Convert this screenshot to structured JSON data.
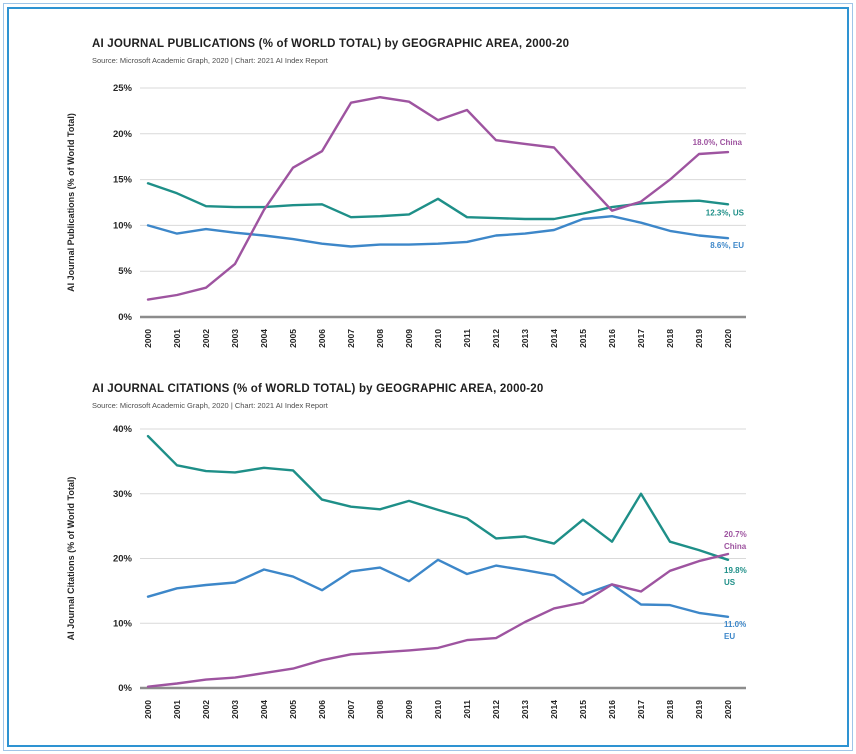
{
  "page": {
    "border_outer_color": "#9fc5e8",
    "border_inner_color": "#2e93d2",
    "background": "#ffffff"
  },
  "charts": [
    {
      "title": "AI JOURNAL PUBLICATIONS (% of WORLD TOTAL) by GEOGRAPHIC AREA, 2000-20",
      "source": "Source: Microsoft Academic Graph, 2020 | Chart: 2021 AI Index Report",
      "chart_data": {
        "type": "line",
        "ylabel": "AI Journal Publications (% of World Total)",
        "ylim": [
          0,
          25
        ],
        "yticks": [
          0,
          5,
          10,
          15,
          20,
          25
        ],
        "ytick_labels": [
          "0%",
          "5%",
          "10%",
          "15%",
          "20%",
          "25%"
        ],
        "grid": true,
        "categories": [
          "2000",
          "2001",
          "2002",
          "2003",
          "2004",
          "2005",
          "2006",
          "2007",
          "2008",
          "2009",
          "2010",
          "2011",
          "2012",
          "2013",
          "2014",
          "2015",
          "2016",
          "2017",
          "2018",
          "2019",
          "2020"
        ],
        "series": [
          {
            "name": "US",
            "color": "#1e8f88",
            "values": [
              14.6,
              13.5,
              12.1,
              12.0,
              12.0,
              12.2,
              12.3,
              10.9,
              11.0,
              11.2,
              12.9,
              10.9,
              10.8,
              10.7,
              10.7,
              11.3,
              12.0,
              12.4,
              12.6,
              12.7,
              12.3
            ],
            "end_label_lines": [
              "12.3%, US"
            ]
          },
          {
            "name": "EU",
            "color": "#3d87c9",
            "values": [
              10.0,
              9.1,
              9.6,
              9.2,
              8.9,
              8.5,
              8.0,
              7.7,
              7.9,
              7.9,
              8.0,
              8.2,
              8.9,
              9.1,
              9.5,
              10.7,
              11.0,
              10.3,
              9.4,
              8.9,
              8.6
            ],
            "end_label_lines": [
              "8.6%, EU"
            ]
          },
          {
            "name": "China",
            "color": "#9e54a0",
            "values": [
              1.9,
              2.4,
              3.2,
              5.8,
              11.7,
              16.3,
              18.1,
              23.4,
              24.0,
              23.5,
              21.5,
              22.6,
              19.3,
              18.9,
              18.5,
              15.0,
              11.6,
              12.6,
              15.0,
              17.8,
              18.0
            ],
            "end_label_lines": [
              "18.0%, China"
            ]
          }
        ]
      }
    },
    {
      "title": "AI JOURNAL CITATIONS (% of WORLD TOTAL) by GEOGRAPHIC AREA, 2000-20",
      "source": "Source: Microsoft Academic Graph, 2020 | Chart: 2021 AI Index Report",
      "chart_data": {
        "type": "line",
        "ylabel": "AI Journal Citations (% of World Total)",
        "ylim": [
          0,
          40
        ],
        "yticks": [
          0,
          10,
          20,
          30,
          40
        ],
        "ytick_labels": [
          "0%",
          "10%",
          "20%",
          "30%",
          "40%"
        ],
        "grid": true,
        "categories": [
          "2000",
          "2001",
          "2002",
          "2003",
          "2004",
          "2005",
          "2006",
          "2007",
          "2008",
          "2009",
          "2010",
          "2011",
          "2012",
          "2013",
          "2014",
          "2015",
          "2016",
          "2017",
          "2018",
          "2019",
          "2020"
        ],
        "series": [
          {
            "name": "US",
            "color": "#1e8f88",
            "values": [
              38.9,
              34.4,
              33.5,
              33.3,
              34.0,
              33.6,
              29.1,
              28.0,
              27.6,
              28.9,
              27.5,
              26.2,
              23.1,
              23.4,
              22.3,
              26.0,
              22.6,
              30.0,
              22.6,
              21.3,
              19.8
            ],
            "end_label_lines": [
              "19.8%",
              "US"
            ]
          },
          {
            "name": "EU",
            "color": "#3d87c9",
            "values": [
              14.1,
              15.4,
              15.9,
              16.3,
              18.3,
              17.2,
              15.1,
              18.0,
              18.6,
              16.5,
              19.8,
              17.6,
              18.9,
              18.2,
              17.4,
              14.4,
              16.0,
              12.9,
              12.8,
              11.6,
              11.0
            ],
            "end_label_lines": [
              "11.0%",
              "EU"
            ]
          },
          {
            "name": "China",
            "color": "#9e54a0",
            "values": [
              0.2,
              0.7,
              1.3,
              1.6,
              2.3,
              3.0,
              4.3,
              5.2,
              5.5,
              5.8,
              6.2,
              7.4,
              7.7,
              10.2,
              12.3,
              13.2,
              16.0,
              14.9,
              18.1,
              19.6,
              20.7
            ],
            "end_label_lines": [
              "20.7%",
              "China"
            ]
          }
        ]
      }
    }
  ]
}
